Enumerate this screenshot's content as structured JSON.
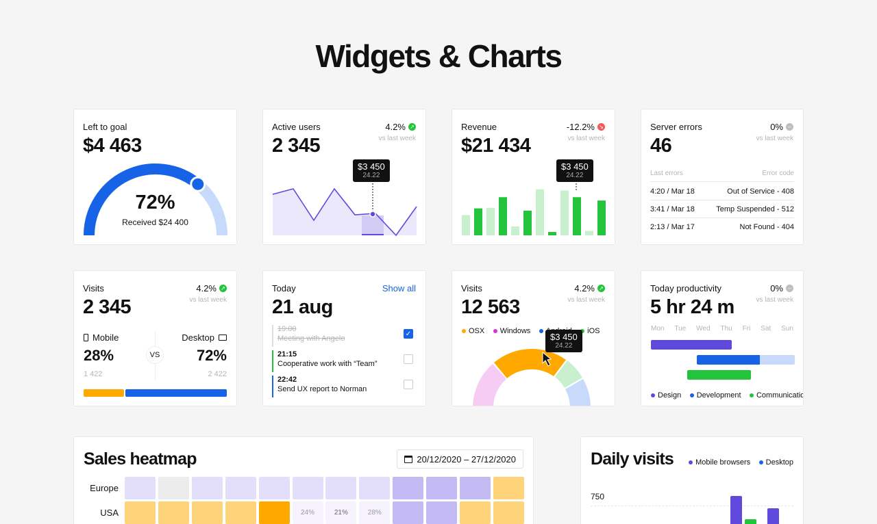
{
  "page": {
    "title": "Widgets & Charts"
  },
  "colors": {
    "blue": "#1763e8",
    "light_blue": "#c7dafc",
    "green": "#24c33c",
    "light_green": "#c8f0cf",
    "red": "#f05a5a",
    "purple": "#6049dd",
    "light_purple": "#ebe8fb",
    "orange": "#ffa800",
    "pink": "#f6ccf5",
    "gray": "#bfbfbf"
  },
  "goal": {
    "title": "Left to goal",
    "value": "$4 463",
    "percent": "72%",
    "progress": 0.72,
    "subtitle": "Received $24 400"
  },
  "active_users": {
    "title": "Active users",
    "value": "2 345",
    "change": "4.2%",
    "vs": "vs last week",
    "tooltip_main": "$3 450",
    "tooltip_sub": "24.22"
  },
  "revenue": {
    "title": "Revenue",
    "value": "$21 434",
    "change": "-12.2%",
    "vs": "vs last week",
    "tooltip_main": "$3 450",
    "tooltip_sub": "24.22"
  },
  "server_errors": {
    "title": "Server errors",
    "value": "46",
    "change": "0%",
    "vs": "vs last week",
    "head_left": "Last errors",
    "head_right": "Error code",
    "rows": [
      {
        "time": "4:20 / Mar 18",
        "code": "Out of Service - 408"
      },
      {
        "time": "3:41 / Mar 18",
        "code": "Temp Suspended - 512"
      },
      {
        "time": "2:13 / Mar 17",
        "code": "Not Found - 404"
      }
    ]
  },
  "visits_device": {
    "title": "Visits",
    "value": "2 345",
    "change": "4.2%",
    "vs": "vs last week",
    "mobile_label": "Mobile",
    "desktop_label": "Desktop",
    "mobile_pct": "28%",
    "desktop_pct": "72%",
    "vs_label": "VS",
    "mobile_count": "1 422",
    "desktop_count": "2 422",
    "mobile_share": 0.28
  },
  "today": {
    "title": "Today",
    "link": "Show all",
    "date": "21 aug",
    "tasks": [
      {
        "time": "19:00",
        "text": "Meeting with Angelo",
        "done": true
      },
      {
        "time": "21:15",
        "text": "Cooperative work with “Team”",
        "done": false
      },
      {
        "time": "22:42",
        "text": "Send UX report to Norman",
        "done": false
      }
    ]
  },
  "visits_os": {
    "title": "Visits",
    "value": "12 563",
    "change": "4.2%",
    "vs": "vs last week",
    "legend": [
      "OSX",
      "Windows",
      "Android",
      "iOS"
    ],
    "tooltip_main": "$3 450",
    "tooltip_sub": "24.22"
  },
  "productivity": {
    "title": "Today productivity",
    "value": "5 hr 24 m",
    "change": "0%",
    "vs": "vs last week",
    "days": [
      "Mon",
      "Tue",
      "Wed",
      "Thu",
      "Fri",
      "Sat",
      "Sun"
    ],
    "legend": [
      "Design",
      "Development",
      "Communication"
    ]
  },
  "heatmap": {
    "title": "Sales heatmap",
    "date_range": "20/12/2020 – 27/12/2020",
    "rows": [
      {
        "label": "Europe",
        "cells": [
          "",
          "",
          "",
          "",
          "",
          "",
          "",
          "",
          "",
          "",
          "",
          ""
        ]
      },
      {
        "label": "USA",
        "cells": [
          "",
          "",
          "",
          "",
          "",
          "24%",
          "21%",
          "28%",
          "",
          "",
          "",
          ""
        ]
      }
    ]
  },
  "daily_visits": {
    "title": "Daily visits",
    "legend": [
      "Mobile browsers",
      "Desktop"
    ],
    "y_label": "750"
  },
  "chart_data": [
    {
      "type": "line",
      "title": "Active users",
      "values": [
        60,
        68,
        22,
        68,
        30,
        32,
        0,
        42
      ]
    },
    {
      "type": "bar",
      "title": "Revenue",
      "series": [
        {
          "name": "light",
          "values": [
            36,
            49,
            16,
            82,
            80,
            8
          ]
        },
        {
          "name": "dark",
          "values": [
            48,
            68,
            44,
            6,
            68,
            62
          ]
        }
      ]
    }
  ]
}
